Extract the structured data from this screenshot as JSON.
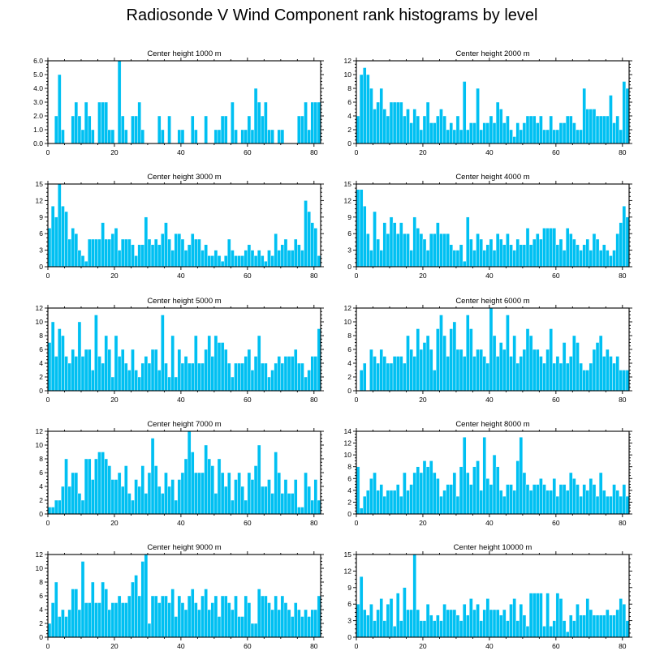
{
  "title": "Radiosonde V Wind Component rank histograms by level",
  "colors": {
    "bar": "#00c0f2",
    "axis": "#000000",
    "background": "#ffffff"
  },
  "chart_data": [
    {
      "type": "bar",
      "title": "Center height 1000 m",
      "xlim": [
        0,
        82
      ],
      "ylim": [
        0,
        6
      ],
      "yticks": [
        0,
        1,
        2,
        3,
        4,
        5,
        6
      ],
      "ytick_labels": [
        "0.0",
        "1.0",
        "2.0",
        "3.0",
        "4.0",
        "5.0",
        "6.0"
      ],
      "xticks": [
        0,
        20,
        40,
        60,
        80
      ],
      "values": [
        0,
        0,
        2,
        5,
        1,
        0,
        0,
        2,
        3,
        2,
        1,
        3,
        2,
        1,
        0,
        3,
        3,
        3,
        1,
        1,
        0,
        6,
        2,
        1,
        0,
        2,
        2,
        3,
        1,
        0,
        0,
        0,
        0,
        2,
        1,
        0,
        2,
        0,
        0,
        1,
        1,
        0,
        0,
        2,
        1,
        0,
        0,
        2,
        0,
        0,
        1,
        1,
        2,
        2,
        0,
        3,
        1,
        0,
        1,
        1,
        2,
        1,
        4,
        3,
        2,
        3,
        1,
        1,
        0,
        1,
        1,
        0,
        0,
        0,
        0,
        2,
        2,
        3,
        1,
        3,
        3,
        3
      ]
    },
    {
      "type": "bar",
      "title": "Center height 2000 m",
      "xlim": [
        0,
        82
      ],
      "ylim": [
        0,
        12
      ],
      "yticks": [
        0,
        2,
        4,
        6,
        8,
        10,
        12
      ],
      "ytick_labels": [
        "0",
        "2",
        "4",
        "6",
        "8",
        "10",
        "12"
      ],
      "xticks": [
        0,
        20,
        40,
        60,
        80
      ],
      "values": [
        4,
        10,
        11,
        10,
        8,
        5,
        6,
        8,
        5,
        4,
        6,
        6,
        6,
        6,
        4,
        5,
        3,
        5,
        4,
        2,
        4,
        6,
        3,
        3,
        4,
        5,
        4,
        2,
        3,
        2,
        4,
        2,
        9,
        2,
        3,
        3,
        8,
        2,
        3,
        3,
        4,
        3,
        6,
        5,
        3,
        4,
        2,
        1,
        3,
        2,
        3,
        4,
        4,
        4,
        3,
        4,
        2,
        2,
        4,
        2,
        2,
        3,
        3,
        4,
        4,
        3,
        2,
        2,
        8,
        5,
        5,
        5,
        4,
        4,
        4,
        4,
        7,
        3,
        4,
        2,
        9,
        8
      ]
    },
    {
      "type": "bar",
      "title": "Center height 3000 m",
      "xlim": [
        0,
        82
      ],
      "ylim": [
        0,
        15
      ],
      "yticks": [
        0,
        3,
        6,
        9,
        12,
        15
      ],
      "ytick_labels": [
        "0",
        "3",
        "6",
        "9",
        "12",
        "15"
      ],
      "xticks": [
        0,
        20,
        40,
        60,
        80
      ],
      "values": [
        7,
        11,
        9,
        15,
        11,
        10,
        5,
        7,
        6,
        3,
        2,
        1,
        5,
        5,
        5,
        5,
        8,
        5,
        5,
        6,
        7,
        3,
        5,
        5,
        5,
        4,
        2,
        4,
        4,
        9,
        5,
        4,
        5,
        4,
        6,
        8,
        5,
        3,
        6,
        6,
        5,
        3,
        4,
        6,
        5,
        5,
        3,
        4,
        2,
        2,
        3,
        2,
        1,
        2,
        5,
        3,
        2,
        2,
        2,
        3,
        4,
        3,
        2,
        3,
        2,
        1,
        3,
        2,
        6,
        3,
        4,
        5,
        3,
        3,
        5,
        4,
        3,
        12,
        10,
        8,
        7,
        2
      ]
    },
    {
      "type": "bar",
      "title": "Center height 4000 m",
      "xlim": [
        0,
        82
      ],
      "ylim": [
        0,
        15
      ],
      "yticks": [
        0,
        3,
        6,
        9,
        12,
        15
      ],
      "ytick_labels": [
        "0",
        "3",
        "6",
        "9",
        "12",
        "15"
      ],
      "xticks": [
        0,
        20,
        40,
        60,
        80
      ],
      "values": [
        14,
        14,
        11,
        6,
        3,
        10,
        5,
        3,
        8,
        6,
        9,
        8,
        6,
        8,
        6,
        6,
        3,
        9,
        7,
        6,
        5,
        3,
        6,
        6,
        8,
        6,
        6,
        6,
        4,
        3,
        3,
        4,
        1,
        9,
        5,
        3,
        6,
        5,
        3,
        4,
        5,
        3,
        6,
        5,
        4,
        6,
        4,
        3,
        5,
        4,
        4,
        7,
        4,
        5,
        6,
        5,
        7,
        7,
        7,
        7,
        4,
        5,
        3,
        7,
        6,
        5,
        4,
        3,
        4,
        5,
        3,
        6,
        5,
        3,
        4,
        3,
        2,
        3,
        6,
        8,
        11,
        9
      ]
    },
    {
      "type": "bar",
      "title": "Center height 5000 m",
      "xlim": [
        0,
        82
      ],
      "ylim": [
        0,
        12
      ],
      "yticks": [
        0,
        2,
        4,
        6,
        8,
        10,
        12
      ],
      "ytick_labels": [
        "0",
        "2",
        "4",
        "6",
        "8",
        "10",
        "12"
      ],
      "xticks": [
        0,
        20,
        40,
        60,
        80
      ],
      "values": [
        7,
        10,
        5,
        9,
        8,
        5,
        4,
        6,
        5,
        10,
        5,
        6,
        6,
        3,
        11,
        5,
        4,
        8,
        6,
        2,
        8,
        5,
        6,
        4,
        3,
        6,
        3,
        2,
        4,
        5,
        4,
        6,
        6,
        3,
        11,
        4,
        2,
        8,
        2,
        6,
        4,
        5,
        4,
        4,
        8,
        4,
        4,
        6,
        8,
        5,
        8,
        7,
        7,
        6,
        4,
        2,
        4,
        4,
        4,
        5,
        6,
        3,
        5,
        8,
        4,
        4,
        2,
        3,
        4,
        5,
        4,
        5,
        5,
        5,
        6,
        4,
        4,
        2,
        3,
        5,
        5,
        9
      ]
    },
    {
      "type": "bar",
      "title": "Center height 6000 m",
      "xlim": [
        0,
        82
      ],
      "ylim": [
        0,
        12
      ],
      "yticks": [
        0,
        2,
        4,
        6,
        8,
        10,
        12
      ],
      "ytick_labels": [
        "0",
        "2",
        "4",
        "6",
        "8",
        "10",
        "12"
      ],
      "xticks": [
        0,
        20,
        40,
        60,
        80
      ],
      "values": [
        0,
        3,
        4,
        0,
        6,
        5,
        4,
        6,
        5,
        4,
        4,
        5,
        5,
        5,
        4,
        8,
        6,
        5,
        9,
        6,
        7,
        8,
        6,
        3,
        9,
        11,
        8,
        5,
        9,
        10,
        6,
        6,
        5,
        11,
        9,
        5,
        6,
        6,
        5,
        4,
        12,
        8,
        5,
        7,
        6,
        11,
        5,
        8,
        4,
        5,
        6,
        9,
        8,
        6,
        6,
        5,
        4,
        6,
        9,
        4,
        5,
        4,
        7,
        4,
        5,
        8,
        7,
        4,
        3,
        3,
        4,
        6,
        7,
        8,
        5,
        6,
        5,
        4,
        5,
        3,
        3,
        3
      ]
    },
    {
      "type": "bar",
      "title": "Center height 7000 m",
      "xlim": [
        0,
        82
      ],
      "ylim": [
        0,
        12
      ],
      "yticks": [
        0,
        2,
        4,
        6,
        8,
        10,
        12
      ],
      "ytick_labels": [
        "0",
        "2",
        "4",
        "6",
        "8",
        "10",
        "12"
      ],
      "xticks": [
        0,
        20,
        40,
        60,
        80
      ],
      "values": [
        1,
        1,
        2,
        2,
        4,
        8,
        4,
        6,
        6,
        3,
        2,
        8,
        8,
        5,
        8,
        9,
        9,
        8,
        7,
        5,
        5,
        6,
        4,
        7,
        3,
        2,
        5,
        4,
        7,
        3,
        6,
        11,
        7,
        4,
        3,
        6,
        4,
        5,
        2,
        5,
        6,
        8,
        12,
        9,
        6,
        6,
        6,
        10,
        8,
        7,
        3,
        8,
        6,
        4,
        6,
        2,
        5,
        6,
        4,
        2,
        6,
        5,
        7,
        10,
        4,
        4,
        5,
        3,
        9,
        6,
        3,
        5,
        3,
        3,
        5,
        1,
        1,
        6,
        4,
        2,
        5,
        2
      ]
    },
    {
      "type": "bar",
      "title": "Center height 8000 m",
      "xlim": [
        0,
        82
      ],
      "ylim": [
        0,
        14
      ],
      "yticks": [
        0,
        2,
        4,
        6,
        8,
        10,
        12,
        14
      ],
      "ytick_labels": [
        "0",
        "2",
        "4",
        "6",
        "8",
        "10",
        "12",
        "14"
      ],
      "xticks": [
        0,
        20,
        40,
        60,
        80
      ],
      "values": [
        8,
        1,
        3,
        4,
        6,
        7,
        4,
        5,
        3,
        4,
        4,
        4,
        5,
        3,
        7,
        4,
        5,
        7,
        8,
        7,
        9,
        8,
        9,
        7,
        6,
        3,
        4,
        5,
        5,
        7,
        3,
        8,
        13,
        7,
        5,
        8,
        9,
        4,
        13,
        6,
        5,
        10,
        8,
        4,
        3,
        5,
        5,
        4,
        9,
        13,
        7,
        5,
        4,
        5,
        5,
        6,
        5,
        4,
        4,
        6,
        3,
        5,
        5,
        4,
        7,
        6,
        5,
        3,
        5,
        4,
        6,
        5,
        3,
        7,
        4,
        3,
        3,
        5,
        4,
        3,
        5,
        3
      ]
    },
    {
      "type": "bar",
      "title": "Center height 9000 m",
      "xlim": [
        0,
        82
      ],
      "ylim": [
        0,
        12
      ],
      "yticks": [
        0,
        2,
        4,
        6,
        8,
        10,
        12
      ],
      "ytick_labels": [
        "0",
        "2",
        "4",
        "6",
        "8",
        "10",
        "12"
      ],
      "xticks": [
        0,
        20,
        40,
        60,
        80
      ],
      "values": [
        2,
        5,
        8,
        3,
        4,
        3,
        4,
        7,
        7,
        4,
        11,
        5,
        5,
        8,
        5,
        5,
        8,
        7,
        4,
        5,
        5,
        6,
        5,
        5,
        6,
        8,
        9,
        6,
        11,
        12,
        2,
        6,
        6,
        5,
        6,
        6,
        5,
        7,
        3,
        6,
        5,
        4,
        6,
        7,
        5,
        4,
        6,
        7,
        4,
        5,
        6,
        3,
        6,
        6,
        5,
        4,
        6,
        3,
        3,
        6,
        5,
        2,
        2,
        7,
        6,
        6,
        5,
        4,
        6,
        4,
        6,
        5,
        4,
        3,
        5,
        4,
        3,
        4,
        3,
        4,
        4,
        6
      ]
    },
    {
      "type": "bar",
      "title": "Center height 10000 m",
      "xlim": [
        0,
        82
      ],
      "ylim": [
        0,
        15
      ],
      "yticks": [
        0,
        3,
        6,
        9,
        12,
        15
      ],
      "ytick_labels": [
        "0",
        "3",
        "6",
        "9",
        "12",
        "15"
      ],
      "xticks": [
        0,
        20,
        40,
        60,
        80
      ],
      "values": [
        6,
        11,
        5,
        4,
        6,
        3,
        5,
        7,
        3,
        6,
        7,
        2,
        8,
        3,
        9,
        5,
        5,
        15,
        5,
        3,
        3,
        6,
        4,
        3,
        4,
        3,
        6,
        5,
        5,
        5,
        4,
        3,
        6,
        4,
        7,
        5,
        6,
        3,
        5,
        7,
        5,
        5,
        5,
        4,
        5,
        3,
        6,
        7,
        3,
        6,
        4,
        2,
        8,
        8,
        8,
        8,
        2,
        8,
        2,
        3,
        8,
        7,
        3,
        1,
        4,
        3,
        6,
        4,
        4,
        7,
        5,
        4,
        4,
        4,
        4,
        5,
        4,
        4,
        5,
        7,
        6,
        3
      ]
    }
  ]
}
